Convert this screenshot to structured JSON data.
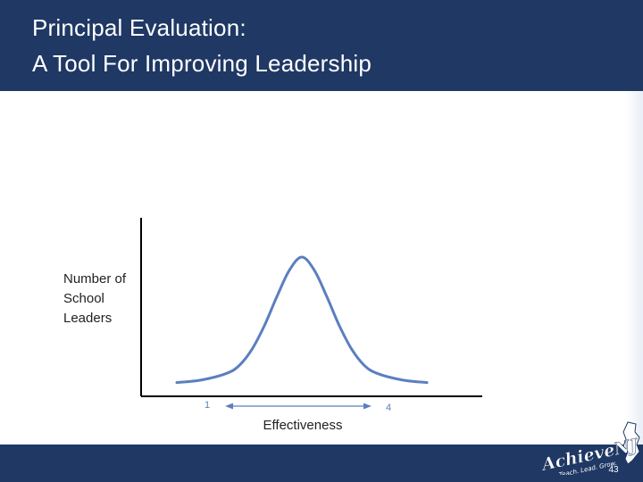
{
  "slide": {
    "title_line1": "Principal Evaluation:",
    "title_line2": "A Tool For Improving Leadership",
    "slide_number": "43"
  },
  "logo": {
    "brand_text": "AchieveNJ",
    "tagline": "Teach. Lead. Grow."
  },
  "colors": {
    "header": "#1f3864",
    "curve": "#5b7fbf",
    "axis": "#000000"
  },
  "chart_data": {
    "type": "line",
    "title": "",
    "ylabel_lines": [
      "Number of",
      "School",
      "Leaders"
    ],
    "xlabel": "Effectiveness",
    "x_tick_left": "1",
    "x_tick_right": "4",
    "grid": false,
    "series": [
      {
        "x": [
          0.0,
          0.5,
          1.0,
          1.25,
          1.5,
          1.75,
          2.0,
          2.25,
          2.5,
          2.75,
          3.0,
          3.25,
          3.5,
          3.75,
          4.0,
          4.5,
          5.0
        ],
        "y": [
          0.05,
          0.07,
          0.12,
          0.18,
          0.3,
          0.48,
          0.7,
          0.9,
          1.0,
          0.9,
          0.7,
          0.48,
          0.3,
          0.18,
          0.12,
          0.07,
          0.05
        ]
      }
    ],
    "xlim": [
      0,
      5
    ],
    "ylim": [
      0,
      1.0
    ]
  }
}
